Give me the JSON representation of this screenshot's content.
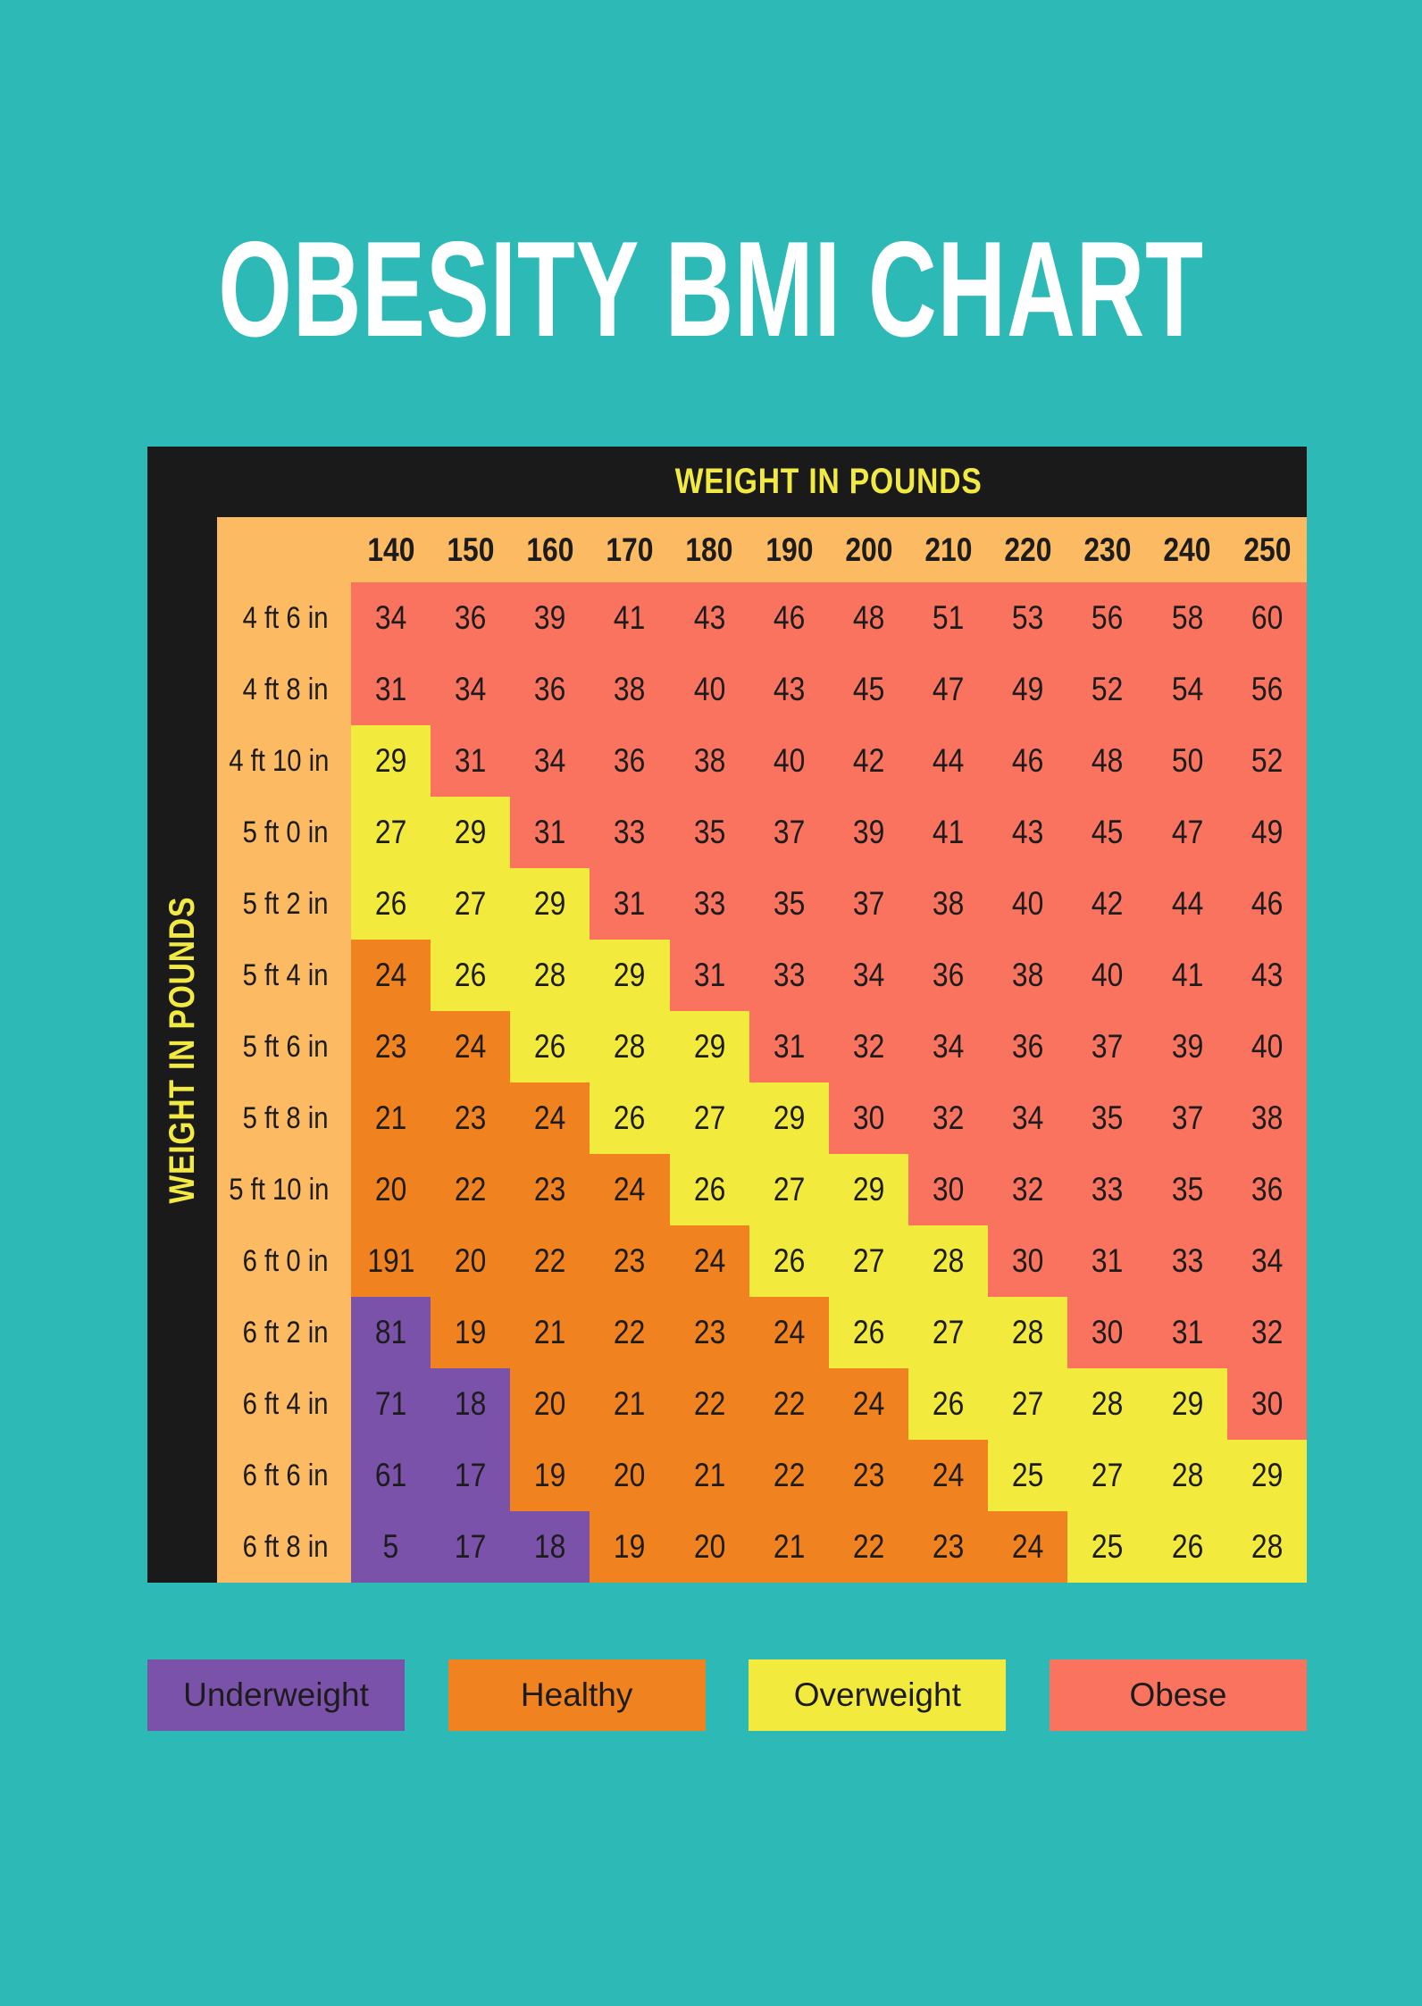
{
  "title": "OBESITY BMI CHART",
  "axes": {
    "top": "WEIGHT IN POUNDS",
    "left": "WEIGHT IN POUNDS"
  },
  "legend": [
    {
      "label": "Underweight",
      "key": "u"
    },
    {
      "label": "Healthy",
      "key": "h"
    },
    {
      "label": "Overweight",
      "key": "ow"
    },
    {
      "label": "Obese",
      "key": "ob"
    }
  ],
  "colors": {
    "background": "#2db9b6",
    "frame": "#1a1a1a",
    "header_band": "#fcba63",
    "axis_text": "#f2e943",
    "title_text": "#ffffff",
    "cell_text": "#1c1c1c",
    "underweight": "#7b52a9",
    "healthy": "#f0821f",
    "overweight": "#f2ea3d",
    "obese": "#f9735e"
  },
  "chart_data": {
    "type": "heatmap",
    "title": "OBESITY BMI CHART",
    "x_label": "WEIGHT IN POUNDS",
    "y_label": "WEIGHT IN POUNDS",
    "legend_position": "bottom",
    "category_names": {
      "u": "Underweight",
      "h": "Healthy",
      "ow": "Overweight",
      "ob": "Obese"
    },
    "columns": [
      "140",
      "150",
      "160",
      "170",
      "180",
      "190",
      "200",
      "210",
      "220",
      "230",
      "240",
      "250"
    ],
    "rows": [
      "4 ft 6 in",
      "4 ft 8 in",
      "4 ft 10 in",
      "5 ft 0 in",
      "5 ft 2 in",
      "5 ft 4 in",
      "5 ft 6 in",
      "5 ft 8 in",
      "5 ft 10 in",
      "6 ft 0 in",
      "6 ft 2 in",
      "6 ft 4 in",
      "6 ft 6 in",
      "6 ft 8 in"
    ],
    "values": [
      [
        34,
        36,
        39,
        41,
        43,
        46,
        48,
        51,
        53,
        56,
        58,
        60
      ],
      [
        31,
        34,
        36,
        38,
        40,
        43,
        45,
        47,
        49,
        52,
        54,
        56
      ],
      [
        29,
        31,
        34,
        36,
        38,
        40,
        42,
        44,
        46,
        48,
        50,
        52
      ],
      [
        27,
        29,
        31,
        33,
        35,
        37,
        39,
        41,
        43,
        45,
        47,
        49
      ],
      [
        26,
        27,
        29,
        31,
        33,
        35,
        37,
        38,
        40,
        42,
        44,
        46
      ],
      [
        24,
        26,
        28,
        29,
        31,
        33,
        34,
        36,
        38,
        40,
        41,
        43
      ],
      [
        23,
        24,
        26,
        28,
        29,
        31,
        32,
        34,
        36,
        37,
        39,
        40
      ],
      [
        21,
        23,
        24,
        26,
        27,
        29,
        30,
        32,
        34,
        35,
        37,
        38
      ],
      [
        20,
        22,
        23,
        24,
        26,
        27,
        29,
        30,
        32,
        33,
        35,
        36
      ],
      [
        191,
        20,
        22,
        23,
        24,
        26,
        27,
        28,
        30,
        31,
        33,
        34
      ],
      [
        81,
        19,
        21,
        22,
        23,
        24,
        26,
        27,
        28,
        30,
        31,
        32
      ],
      [
        71,
        18,
        20,
        21,
        22,
        22,
        24,
        26,
        27,
        28,
        29,
        30
      ],
      [
        61,
        17,
        19,
        20,
        21,
        22,
        23,
        24,
        25,
        27,
        28,
        29
      ],
      [
        5,
        17,
        18,
        19,
        20,
        21,
        22,
        23,
        24,
        25,
        26,
        28
      ]
    ],
    "categories": [
      [
        "ob",
        "ob",
        "ob",
        "ob",
        "ob",
        "ob",
        "ob",
        "ob",
        "ob",
        "ob",
        "ob",
        "ob"
      ],
      [
        "ob",
        "ob",
        "ob",
        "ob",
        "ob",
        "ob",
        "ob",
        "ob",
        "ob",
        "ob",
        "ob",
        "ob"
      ],
      [
        "ow",
        "ob",
        "ob",
        "ob",
        "ob",
        "ob",
        "ob",
        "ob",
        "ob",
        "ob",
        "ob",
        "ob"
      ],
      [
        "ow",
        "ow",
        "ob",
        "ob",
        "ob",
        "ob",
        "ob",
        "ob",
        "ob",
        "ob",
        "ob",
        "ob"
      ],
      [
        "ow",
        "ow",
        "ow",
        "ob",
        "ob",
        "ob",
        "ob",
        "ob",
        "ob",
        "ob",
        "ob",
        "ob"
      ],
      [
        "h",
        "ow",
        "ow",
        "ow",
        "ob",
        "ob",
        "ob",
        "ob",
        "ob",
        "ob",
        "ob",
        "ob"
      ],
      [
        "h",
        "h",
        "ow",
        "ow",
        "ow",
        "ob",
        "ob",
        "ob",
        "ob",
        "ob",
        "ob",
        "ob"
      ],
      [
        "h",
        "h",
        "h",
        "ow",
        "ow",
        "ow",
        "ob",
        "ob",
        "ob",
        "ob",
        "ob",
        "ob"
      ],
      [
        "h",
        "h",
        "h",
        "h",
        "ow",
        "ow",
        "ow",
        "ob",
        "ob",
        "ob",
        "ob",
        "ob"
      ],
      [
        "h",
        "h",
        "h",
        "h",
        "h",
        "ow",
        "ow",
        "ow",
        "ob",
        "ob",
        "ob",
        "ob"
      ],
      [
        "u",
        "h",
        "h",
        "h",
        "h",
        "h",
        "ow",
        "ow",
        "ow",
        "ob",
        "ob",
        "ob"
      ],
      [
        "u",
        "u",
        "h",
        "h",
        "h",
        "h",
        "h",
        "ow",
        "ow",
        "ow",
        "ow",
        "ob"
      ],
      [
        "u",
        "u",
        "h",
        "h",
        "h",
        "h",
        "h",
        "h",
        "ow",
        "ow",
        "ow",
        "ow"
      ],
      [
        "u",
        "u",
        "u",
        "h",
        "h",
        "h",
        "h",
        "h",
        "h",
        "ow",
        "ow",
        "ow"
      ]
    ]
  }
}
